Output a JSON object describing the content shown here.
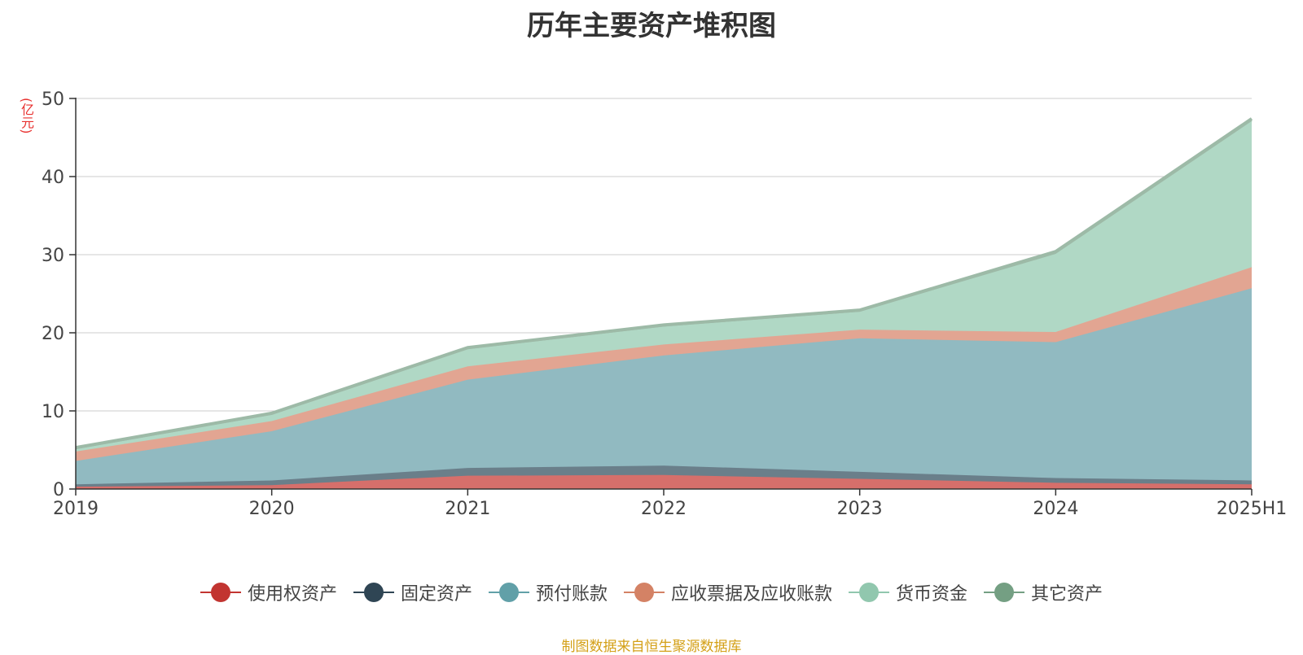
{
  "chart_data": {
    "type": "area",
    "stacked": true,
    "title": "历年主要资产堆积图",
    "y_unit": "(亿元)",
    "categories": [
      "2019",
      "2020",
      "2021",
      "2022",
      "2023",
      "2024",
      "2025H1"
    ],
    "ylim": [
      0,
      50
    ],
    "yticks": [
      "0",
      "10",
      "20",
      "30",
      "40",
      "50"
    ],
    "grid": true,
    "legend_position": "bottom",
    "series": [
      {
        "name": "使用权资产",
        "color": "#c23531",
        "fill": "#d66f6b",
        "values": [
          0.3,
          0.5,
          1.7,
          1.8,
          1.3,
          0.8,
          0.6
        ]
      },
      {
        "name": "固定资产",
        "color": "#2f4554",
        "fill": "#6a7f8a",
        "values": [
          0.3,
          0.6,
          1.0,
          1.2,
          0.9,
          0.6,
          0.5
        ]
      },
      {
        "name": "预付账款",
        "color": "#61a0a8",
        "fill": "#91bac1",
        "values": [
          3.0,
          6.3,
          11.3,
          14.1,
          17.1,
          17.4,
          24.6
        ]
      },
      {
        "name": "应收票据及应收账款",
        "color": "#d48265",
        "fill": "#e2a592",
        "values": [
          1.2,
          1.3,
          1.7,
          1.4,
          1.1,
          1.3,
          2.7
        ]
      },
      {
        "name": "货币资金",
        "color": "#91c7ae",
        "fill": "#b0d8c5",
        "values": [
          0.3,
          0.8,
          2.2,
          2.3,
          2.3,
          10.0,
          18.7
        ]
      },
      {
        "name": "其它资产",
        "color": "#749f83",
        "fill": "#9dbaa7",
        "values": [
          0.2,
          0.2,
          0.2,
          0.2,
          0.2,
          0.3,
          0.3
        ]
      }
    ]
  },
  "footer": {
    "source": "制图数据来自恒生聚源数据库"
  }
}
